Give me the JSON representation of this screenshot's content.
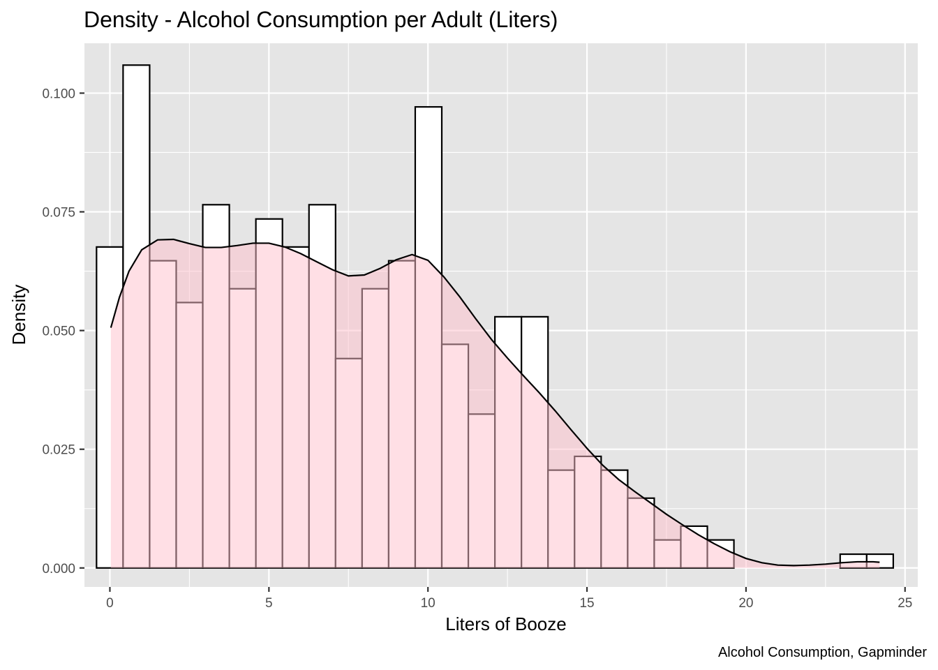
{
  "chart_data": {
    "type": "histogram",
    "title": "Density - Alcohol Consumption per Adult (Liters)",
    "xlabel": "Liters of Booze",
    "ylabel": "Density",
    "caption": "Alcohol Consumption, Gapminder",
    "xlim": [
      -0.8,
      25.4
    ],
    "ylim": [
      -0.004,
      0.1105
    ],
    "x_ticks": [
      0,
      5,
      10,
      15,
      20,
      25
    ],
    "x_tick_labels": [
      "0",
      "5",
      "10",
      "15",
      "20",
      "25"
    ],
    "y_ticks": [
      0,
      0.025,
      0.05,
      0.075,
      0.1
    ],
    "y_tick_labels": [
      "0.000",
      "0.025",
      "0.050",
      "0.075",
      "0.100"
    ],
    "grid": true,
    "bin_width": 0.835,
    "bins": [
      {
        "x0": -0.42,
        "density": 0.0676
      },
      {
        "x0": 0.415,
        "density": 0.1059
      },
      {
        "x0": 1.25,
        "density": 0.0647
      },
      {
        "x0": 2.085,
        "density": 0.0559
      },
      {
        "x0": 2.92,
        "density": 0.0765
      },
      {
        "x0": 3.755,
        "density": 0.0588
      },
      {
        "x0": 4.59,
        "density": 0.0735
      },
      {
        "x0": 5.425,
        "density": 0.0676
      },
      {
        "x0": 6.26,
        "density": 0.0765
      },
      {
        "x0": 7.095,
        "density": 0.0441
      },
      {
        "x0": 7.93,
        "density": 0.0588
      },
      {
        "x0": 8.765,
        "density": 0.0647
      },
      {
        "x0": 9.6,
        "density": 0.0971
      },
      {
        "x0": 10.435,
        "density": 0.0471
      },
      {
        "x0": 11.27,
        "density": 0.0324
      },
      {
        "x0": 12.105,
        "density": 0.0529
      },
      {
        "x0": 12.94,
        "density": 0.0529
      },
      {
        "x0": 13.775,
        "density": 0.0206
      },
      {
        "x0": 14.61,
        "density": 0.0235
      },
      {
        "x0": 15.445,
        "density": 0.0206
      },
      {
        "x0": 16.28,
        "density": 0.0147
      },
      {
        "x0": 17.115,
        "density": 0.0059
      },
      {
        "x0": 17.95,
        "density": 0.0088
      },
      {
        "x0": 18.785,
        "density": 0.0059
      },
      {
        "x0": 19.62,
        "density": 0
      },
      {
        "x0": 20.455,
        "density": 0
      },
      {
        "x0": 21.29,
        "density": 0
      },
      {
        "x0": 22.125,
        "density": 0
      },
      {
        "x0": 22.96,
        "density": 0.0029
      },
      {
        "x0": 23.795,
        "density": 0.0029
      }
    ],
    "density_curve": {
      "x": [
        0.03,
        0.3,
        0.6,
        1.0,
        1.5,
        2.0,
        2.5,
        3.0,
        3.5,
        4.0,
        4.5,
        5.0,
        5.5,
        6.0,
        6.5,
        7.0,
        7.5,
        8.0,
        8.5,
        9.0,
        9.5,
        10.0,
        10.5,
        11.0,
        11.5,
        12.0,
        12.5,
        13.0,
        13.5,
        14.0,
        14.5,
        15.0,
        15.5,
        16.0,
        16.5,
        17.0,
        17.5,
        18.0,
        18.5,
        19.0,
        19.5,
        20.0,
        20.5,
        21.0,
        21.5,
        22.0,
        22.5,
        23.0,
        23.5,
        24.0,
        24.2
      ],
      "y": [
        0.0506,
        0.057,
        0.0625,
        0.067,
        0.0691,
        0.0692,
        0.0683,
        0.0675,
        0.0675,
        0.0679,
        0.0684,
        0.0684,
        0.0676,
        0.0662,
        0.0645,
        0.0628,
        0.0615,
        0.0617,
        0.0631,
        0.0649,
        0.066,
        0.0648,
        0.0613,
        0.0571,
        0.0525,
        0.0481,
        0.0442,
        0.0405,
        0.0369,
        0.0331,
        0.0291,
        0.0252,
        0.0216,
        0.0186,
        0.0161,
        0.0137,
        0.0113,
        0.0091,
        0.007,
        0.0051,
        0.0034,
        0.002,
        0.0011,
        0.0006,
        0.0005,
        0.0006,
        0.0008,
        0.0011,
        0.0013,
        0.0013,
        0.0012
      ]
    },
    "colors": {
      "panel_bg": "#e5e5e5",
      "grid": "#ffffff",
      "bar_fill": "#ffffff",
      "bar_stroke": "#000000",
      "density_fill": "#ffc0cb",
      "density_fill_opacity": 0.5,
      "density_stroke": "#000000",
      "tick_text": "#4d4d4d"
    }
  }
}
